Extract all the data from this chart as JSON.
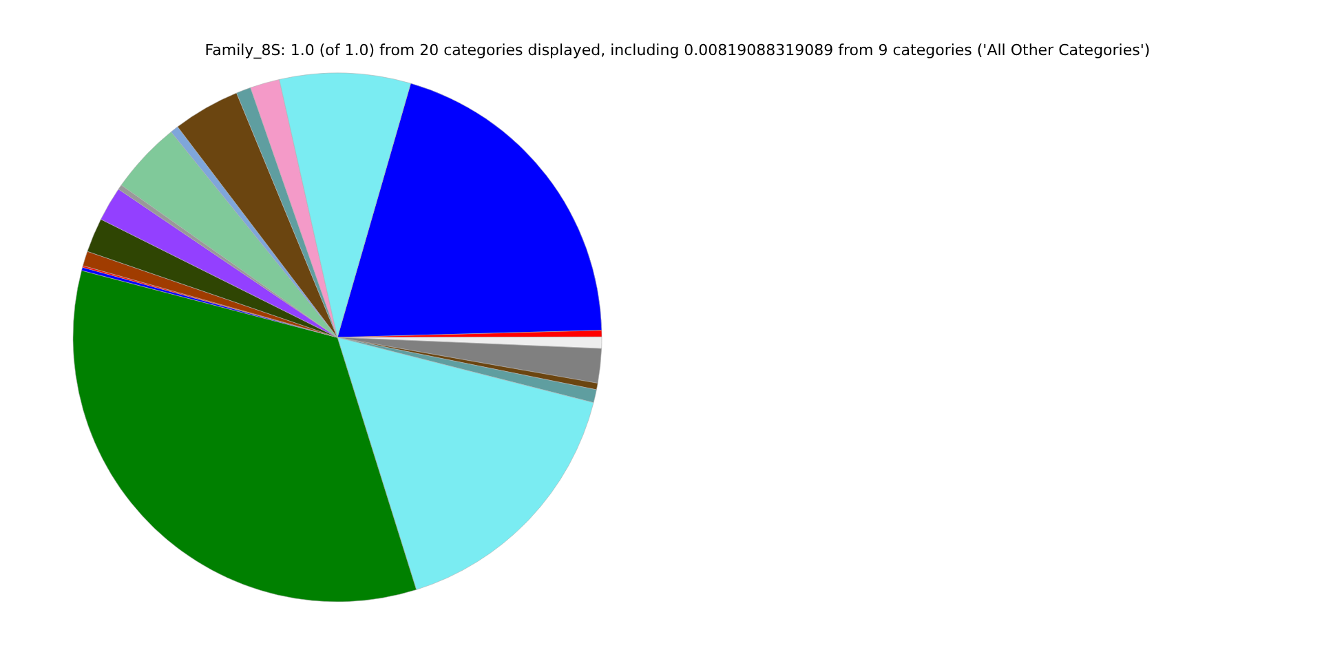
{
  "chart_data": {
    "type": "pie",
    "title": "Family_8S: 1.0 (of 1.0) from 20 categories displayed, including 0.00819088319089 from 9 categories ('All Other Categories')",
    "categories": [
      null,
      null,
      null,
      null,
      null,
      null,
      null,
      null,
      null,
      null,
      null,
      null,
      null,
      null,
      null,
      null,
      null,
      null,
      null,
      null
    ],
    "values": [
      20.1,
      0.4,
      0.7,
      2.1,
      0.4,
      0.8,
      16.2,
      33.9,
      0.2,
      0.1,
      0.9,
      2.1,
      2.1,
      0.3,
      4.4,
      0.5,
      4.1,
      0.9,
      1.8,
      8.0
    ],
    "colors": [
      "#0000ff",
      "#ff0000",
      "#eeeeee",
      "#808080",
      "#6b4510",
      "#5f9ea0",
      "#7aecf2",
      "#008000",
      "#0000ff",
      "#ff0000",
      "#a03c00",
      "#2f4503",
      "#9340ff",
      "#999999",
      "#80c99a",
      "#7fa6da",
      "#6b4510",
      "#5f9ea0",
      "#f49ac8",
      "#7aecf2"
    ]
  }
}
